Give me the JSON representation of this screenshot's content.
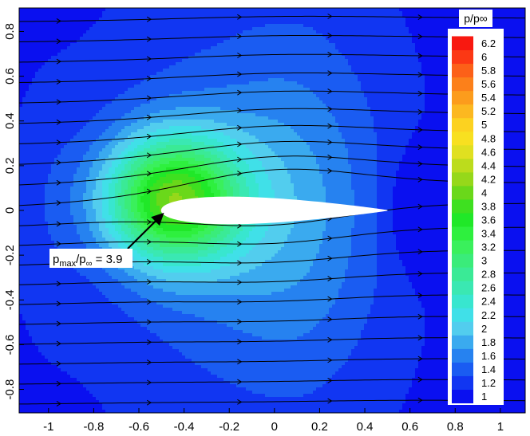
{
  "chart_data": {
    "type": "heatmap",
    "title": "",
    "xlabel": "",
    "ylabel": "",
    "xlim": [
      -1.13,
      1.11
    ],
    "ylim": [
      -0.905,
      0.905
    ],
    "x_ticks": [
      -1,
      -0.8,
      -0.6,
      -0.4,
      -0.2,
      0,
      0.2,
      0.4,
      0.6,
      0.8,
      1
    ],
    "y_ticks": [
      -0.8,
      -0.6,
      -0.4,
      -0.2,
      0,
      0.2,
      0.4,
      0.6,
      0.8
    ],
    "legend": {
      "title": "p/p∞",
      "levels": [
        1,
        1.2,
        1.4,
        1.6,
        1.8,
        2,
        2.2,
        2.4,
        2.6,
        2.8,
        3,
        3.2,
        3.4,
        3.6,
        3.8,
        4,
        4.2,
        4.4,
        4.6,
        4.8,
        5,
        5.2,
        5.4,
        5.6,
        5.8,
        6,
        6.2
      ],
      "colors": [
        "#0a10f0",
        "#1136f2",
        "#1a5cf2",
        "#2682f0",
        "#3aaaef",
        "#52cdee",
        "#40e0e8",
        "#38e6cf",
        "#3ae8b2",
        "#3aea96",
        "#3aec7a",
        "#3af05c",
        "#2ef03e",
        "#20e828",
        "#3ee020",
        "#6ad81a",
        "#96d81a",
        "#bcdc1c",
        "#e0e020",
        "#f8e020",
        "#fcd220",
        "#fcb820",
        "#fc9c1c",
        "#fc801a",
        "#fc6018",
        "#fc3814",
        "#f81810"
      ],
      "placement": "right"
    },
    "annotation": {
      "text_main": "p",
      "sub1": "max",
      "mid": "/p",
      "sub2": "∞",
      "tail": " = 3.9",
      "value": 3.9,
      "target_x": -0.5,
      "target_y": 0.0
    },
    "airfoil": {
      "x_le": -0.5,
      "x_te": 0.5,
      "max_thickness": 0.12
    },
    "pressure_peak": {
      "x": -0.45,
      "y": 0.05,
      "value": 3.9
    },
    "streamlines_y": [
      -0.86,
      -0.77,
      -0.68,
      -0.59,
      -0.5,
      -0.41,
      -0.32,
      -0.23,
      -0.14,
      -0.05,
      0.04,
      0.13,
      0.22,
      0.31,
      0.4,
      0.49,
      0.58,
      0.67,
      0.76,
      0.85
    ]
  }
}
